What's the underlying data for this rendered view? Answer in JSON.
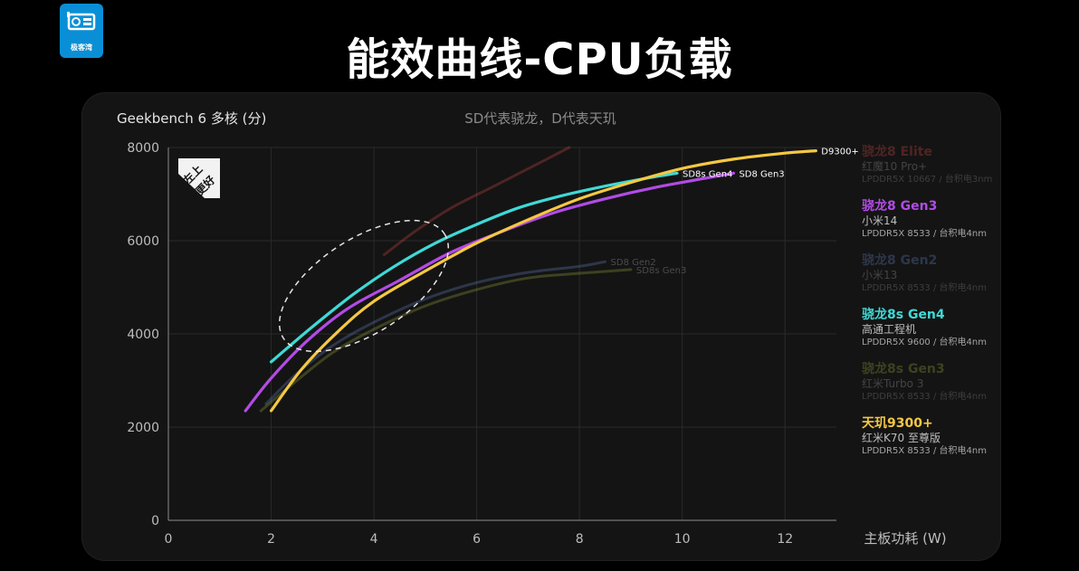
{
  "header": {
    "logo_text": "极客湾",
    "title": "能效曲线-CPU负载"
  },
  "chart_data": {
    "type": "line",
    "title": "能效曲线-CPU负载",
    "subtitle": "SD代表骁龙，D代表天玑",
    "ylabel": "Geekbench 6  多核 (分)",
    "xlabel": "主板功耗 (W)",
    "xlim": [
      0,
      13
    ],
    "ylim": [
      0,
      8000
    ],
    "xticks": [
      0,
      2,
      4,
      6,
      8,
      10,
      12
    ],
    "yticks": [
      0,
      2000,
      4000,
      6000,
      8000
    ],
    "grid": true,
    "badge": [
      "左上",
      "更好"
    ],
    "series": [
      {
        "name": "骁龙8 Elite",
        "end_label": "",
        "color": "#e8504a",
        "faded": true,
        "points": [
          [
            4.2,
            5700
          ],
          [
            4.8,
            6200
          ],
          [
            5.5,
            6700
          ],
          [
            6.3,
            7150
          ],
          [
            7.1,
            7600
          ],
          [
            7.8,
            8000
          ]
        ]
      },
      {
        "name": "骁龙8 Gen2",
        "end_label": "SD8 Gen2",
        "color": "#6e8fd6",
        "faded": true,
        "points": [
          [
            1.9,
            2500
          ],
          [
            2.5,
            3150
          ],
          [
            3.2,
            3750
          ],
          [
            4.0,
            4250
          ],
          [
            5.0,
            4750
          ],
          [
            6.0,
            5100
          ],
          [
            7.0,
            5320
          ],
          [
            8.0,
            5450
          ],
          [
            8.5,
            5550
          ]
        ]
      },
      {
        "name": "骁龙8s Gen3",
        "end_label": "SD8s Gen3",
        "color": "#a8b840",
        "faded": true,
        "points": [
          [
            1.8,
            2350
          ],
          [
            2.5,
            3000
          ],
          [
            3.2,
            3600
          ],
          [
            4.0,
            4100
          ],
          [
            5.0,
            4600
          ],
          [
            6.0,
            4950
          ],
          [
            7.0,
            5200
          ],
          [
            8.0,
            5300
          ],
          [
            9.0,
            5380
          ]
        ]
      },
      {
        "name": "骁龙8 Gen3",
        "end_label": "SD8 Gen3",
        "color": "#b24be6",
        "faded": false,
        "points": [
          [
            1.5,
            2350
          ],
          [
            2.0,
            3050
          ],
          [
            2.7,
            3850
          ],
          [
            3.5,
            4550
          ],
          [
            4.5,
            5150
          ],
          [
            5.5,
            5750
          ],
          [
            6.5,
            6200
          ],
          [
            7.5,
            6600
          ],
          [
            8.5,
            6900
          ],
          [
            9.5,
            7150
          ],
          [
            10.5,
            7350
          ],
          [
            11.0,
            7450
          ]
        ]
      },
      {
        "name": "骁龙8s Gen4",
        "end_label": "SD8s Gen4",
        "color": "#3fd9d6",
        "faded": false,
        "points": [
          [
            2.0,
            3400
          ],
          [
            2.8,
            4150
          ],
          [
            3.6,
            4850
          ],
          [
            4.4,
            5450
          ],
          [
            5.2,
            5950
          ],
          [
            6.0,
            6350
          ],
          [
            6.8,
            6700
          ],
          [
            7.6,
            6950
          ],
          [
            8.4,
            7150
          ],
          [
            9.2,
            7320
          ],
          [
            9.9,
            7450
          ]
        ]
      },
      {
        "name": "天玑9300+",
        "end_label": "D9300+",
        "color": "#f5c842",
        "faded": false,
        "points": [
          [
            2.0,
            2350
          ],
          [
            2.6,
            3250
          ],
          [
            3.3,
            4050
          ],
          [
            4.0,
            4700
          ],
          [
            5.0,
            5350
          ],
          [
            6.0,
            5950
          ],
          [
            7.0,
            6450
          ],
          [
            8.0,
            6900
          ],
          [
            9.0,
            7250
          ],
          [
            10.0,
            7550
          ],
          [
            11.0,
            7750
          ],
          [
            12.0,
            7880
          ],
          [
            12.6,
            7930
          ]
        ]
      }
    ]
  },
  "legend": [
    {
      "name": "骁龙8 Elite",
      "device": "红魔10 Pro+",
      "memory": "LPDDR5X 10667 / 台积电3nm",
      "color": "#e8504a",
      "faded": true
    },
    {
      "name": "骁龙8 Gen3",
      "device": "小米14",
      "memory": "LPDDR5X 8533 / 台积电4nm",
      "color": "#b24be6",
      "faded": false
    },
    {
      "name": "骁龙8 Gen2",
      "device": "小米13",
      "memory": "LPDDR5X 8533 / 台积电4nm",
      "color": "#6e8fd6",
      "faded": true
    },
    {
      "name": "骁龙8s Gen4",
      "device": "高通工程机",
      "memory": "LPDDR5X 9600 / 台积电4nm",
      "color": "#3fd9d6",
      "faded": false
    },
    {
      "name": "骁龙8s Gen3",
      "device": "红米Turbo 3",
      "memory": "LPDDR5X 8533 / 台积电4nm",
      "color": "#a8b840",
      "faded": true
    },
    {
      "name": "天玑9300+",
      "device": "红米K70 至尊版",
      "memory": "LPDDR5X 8533 / 台积电4nm",
      "color": "#f5c842",
      "faded": false
    }
  ]
}
